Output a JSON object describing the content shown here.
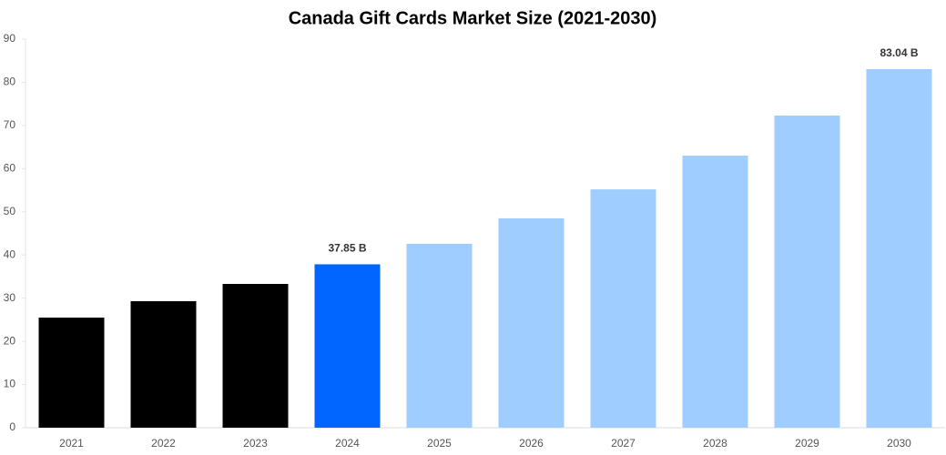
{
  "chart_data": {
    "type": "bar",
    "title": "Canada Gift Cards Market Size (2021-2030)",
    "categories": [
      "2021",
      "2022",
      "2023",
      "2024",
      "2025",
      "2026",
      "2027",
      "2028",
      "2029",
      "2030"
    ],
    "values": [
      25.5,
      29.3,
      33.3,
      37.85,
      42.6,
      48.5,
      55.2,
      63.0,
      72.3,
      83.04
    ],
    "value_labels": [
      null,
      null,
      null,
      "37.85 B",
      null,
      null,
      null,
      null,
      null,
      "83.04 B"
    ],
    "colors": [
      "#000000",
      "#000000",
      "#000000",
      "#0066ff",
      "#a0cdff",
      "#a0cdff",
      "#a0cdff",
      "#a0cdff",
      "#a0cdff",
      "#a0cdff"
    ],
    "ylim": [
      0,
      90
    ],
    "yticks": [
      0,
      10,
      20,
      30,
      40,
      50,
      60,
      70,
      80,
      90
    ],
    "grid": false
  }
}
